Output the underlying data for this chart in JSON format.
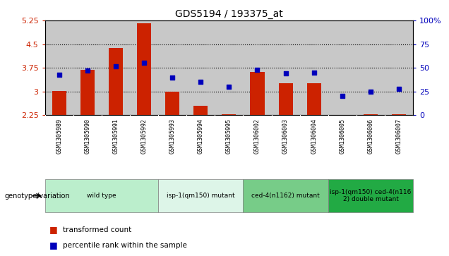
{
  "title": "GDS5194 / 193375_at",
  "samples": [
    "GSM1305989",
    "GSM1305990",
    "GSM1305991",
    "GSM1305992",
    "GSM1305993",
    "GSM1305994",
    "GSM1305995",
    "GSM1306002",
    "GSM1306003",
    "GSM1306004",
    "GSM1306005",
    "GSM1306006",
    "GSM1306007"
  ],
  "bar_values": [
    3.01,
    3.68,
    4.37,
    5.17,
    3.0,
    2.55,
    2.27,
    3.62,
    3.27,
    3.27,
    2.25,
    2.27,
    2.27
  ],
  "scatter_values": [
    43,
    47,
    52,
    55,
    40,
    35,
    30,
    48,
    44,
    45,
    20,
    25,
    28
  ],
  "bar_bottom": 2.25,
  "ylim_left": [
    2.25,
    5.25
  ],
  "ylim_right": [
    0,
    100
  ],
  "yticks_left": [
    2.25,
    3.0,
    3.75,
    4.5,
    5.25
  ],
  "ytick_labels_left": [
    "2.25",
    "3",
    "3.75",
    "4.5",
    "5.25"
  ],
  "yticks_right": [
    0,
    25,
    50,
    75,
    100
  ],
  "ytick_labels_right": [
    "0",
    "25",
    "50",
    "75",
    "100%"
  ],
  "hlines": [
    3.0,
    3.75,
    4.5
  ],
  "bar_color": "#CC2200",
  "scatter_color": "#0000BB",
  "groups": [
    {
      "label": "wild type",
      "indices": [
        0,
        1,
        2,
        3
      ],
      "color": "#bbeecc"
    },
    {
      "label": "isp-1(qm150) mutant",
      "indices": [
        4,
        5,
        6
      ],
      "color": "#ddf5e8"
    },
    {
      "label": "ced-4(n1162) mutant",
      "indices": [
        7,
        8,
        9
      ],
      "color": "#77cc88"
    },
    {
      "label": "isp-1(qm150) ced-4(n116\n2) double mutant",
      "indices": [
        10,
        11,
        12
      ],
      "color": "#22aa44"
    }
  ],
  "genotype_label": "genotype/variation",
  "legend_bar": "transformed count",
  "legend_scatter": "percentile rank within the sample",
  "left_color": "#CC2200",
  "right_color": "#0000BB",
  "bg_color": "#c8c8c8",
  "plot_bg": "#ffffff"
}
